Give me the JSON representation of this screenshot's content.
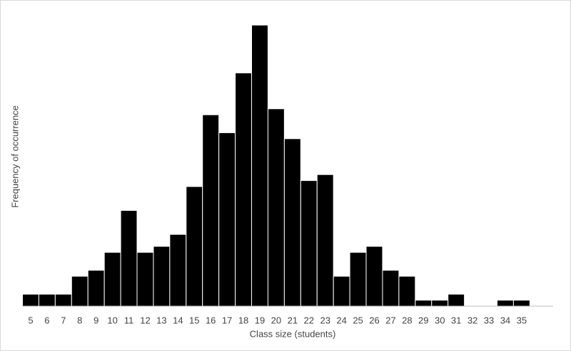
{
  "chart_data": {
    "type": "bar",
    "x_label": "Class size (students)",
    "y_label": "Frequency of occurrence",
    "categories": [
      "5",
      "6",
      "7",
      "8",
      "9",
      "10",
      "11",
      "12",
      "13",
      "14",
      "15",
      "16",
      "17",
      "18",
      "19",
      "20",
      "21",
      "22",
      "23",
      "24",
      "25",
      "26",
      "27",
      "28",
      "29",
      "30",
      "31",
      "32",
      "33",
      "34",
      "35"
    ],
    "values": [
      2,
      2,
      2,
      5,
      6,
      9,
      16,
      9,
      10,
      12,
      20,
      32,
      29,
      39,
      47,
      33,
      28,
      21,
      22,
      5,
      9,
      10,
      6,
      5,
      1,
      1,
      2,
      0,
      0,
      1,
      1
    ],
    "color": "#000000",
    "ylim": [
      0,
      50
    ]
  }
}
